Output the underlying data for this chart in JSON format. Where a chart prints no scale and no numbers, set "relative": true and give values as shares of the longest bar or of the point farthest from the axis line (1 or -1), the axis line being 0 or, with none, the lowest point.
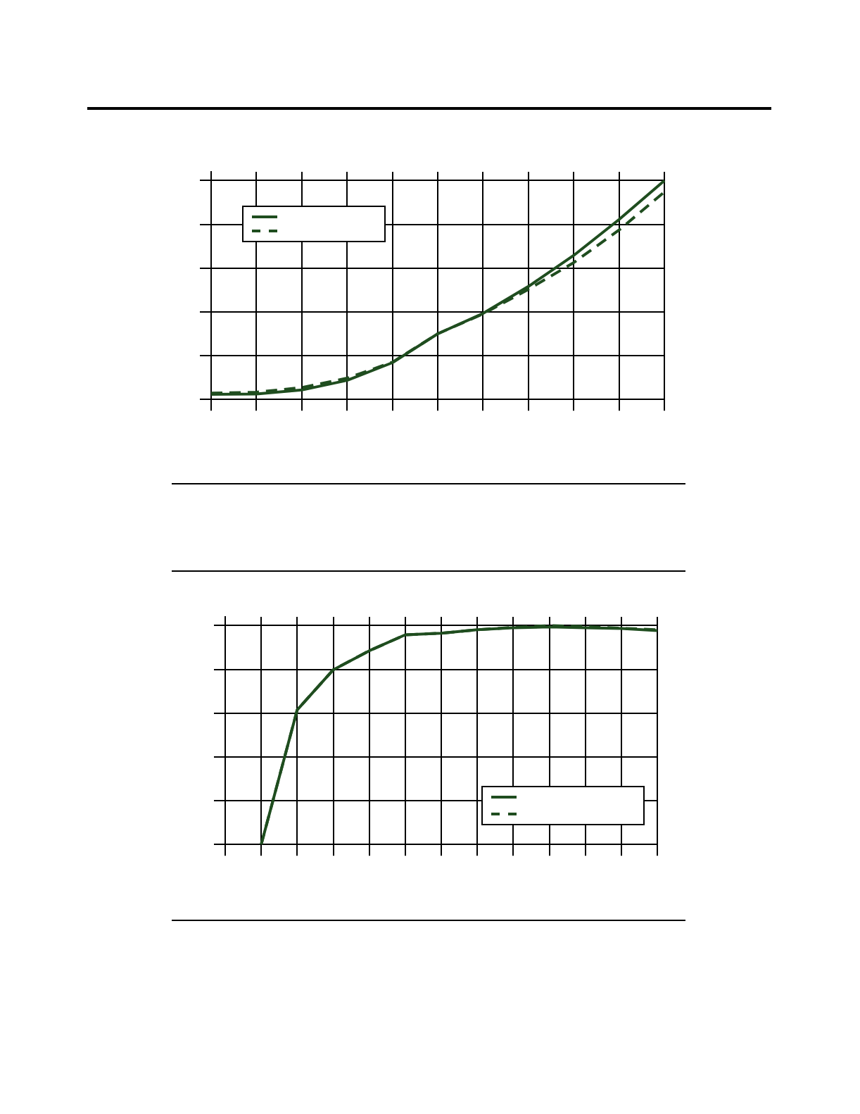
{
  "chart_data": [
    {
      "type": "line",
      "relative": true,
      "grid": true,
      "marker": "none",
      "categories": [
        null,
        null,
        null,
        null,
        null,
        null,
        null,
        null,
        null,
        null,
        null
      ],
      "series": [
        {
          "color": "#1f4d1f",
          "line_style": "solid",
          "values": [
            0.023,
            0.025,
            0.043,
            0.087,
            0.168,
            0.3,
            0.393,
            0.516,
            0.658,
            0.822,
            1.0
          ]
        },
        {
          "color": "#1f4d1f",
          "line_style": "dashed",
          "values": [
            0.029,
            0.033,
            0.054,
            0.097,
            0.17,
            0.3,
            0.391,
            0.503,
            0.625,
            0.774,
            0.948
          ]
        }
      ]
    },
    {
      "type": "line",
      "relative": true,
      "grid": true,
      "marker": "none",
      "categories": [
        null,
        null,
        null,
        null,
        null,
        null,
        null,
        null,
        null,
        null,
        null,
        null,
        null
      ],
      "series": [
        {
          "color": "#1f4d1f",
          "line_style": "solid",
          "values": [
            null,
            0,
            0.615,
            0.798,
            0.885,
            0.958,
            0.965,
            0.981,
            0.99,
            0.994,
            0.99,
            0.987,
            0.977
          ]
        },
        {
          "color": "#1f4d1f",
          "line_style": "dashed",
          "values": [
            null,
            0,
            0.615,
            0.798,
            0.885,
            0.958,
            0.965,
            0.981,
            0.992,
            1.0,
            0.996,
            0.988,
            0.981
          ]
        }
      ]
    }
  ]
}
